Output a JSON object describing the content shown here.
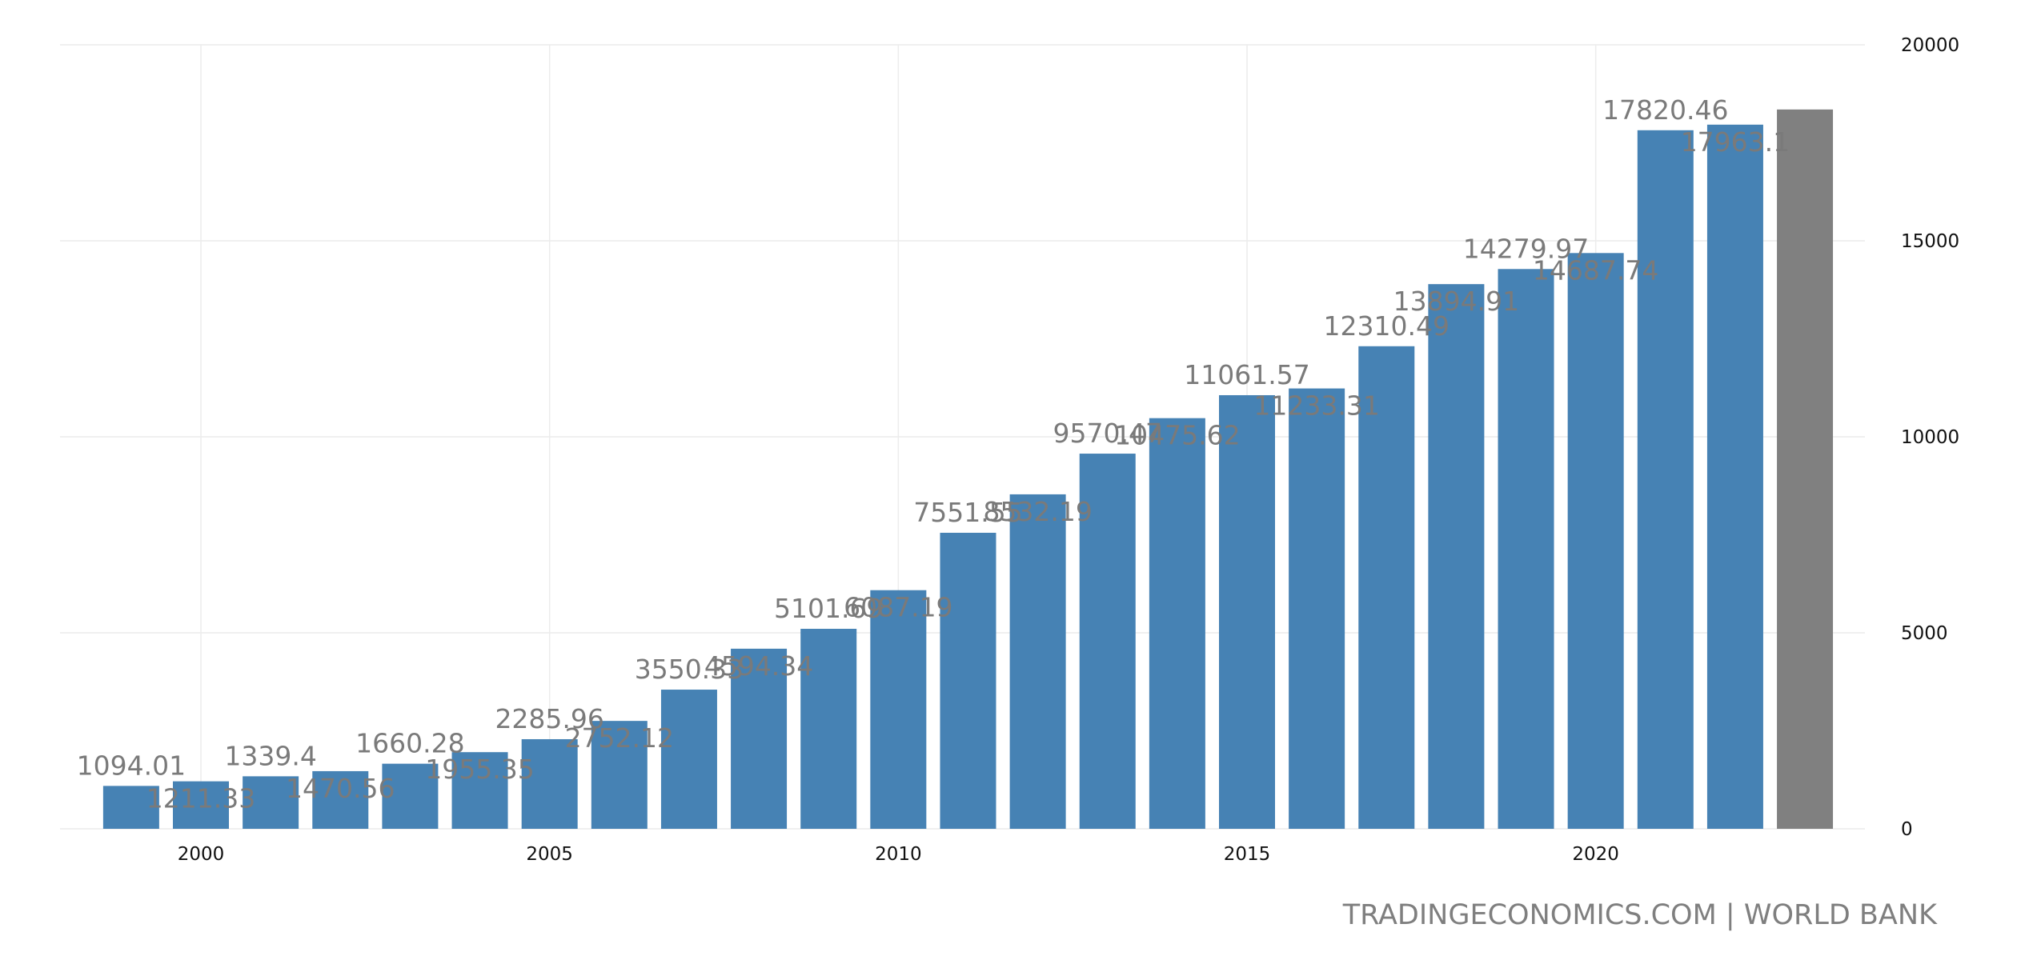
{
  "chart_data": {
    "type": "bar",
    "title": "",
    "xlabel": "",
    "ylabel": "",
    "x": [
      1999,
      2000,
      2001,
      2002,
      2003,
      2004,
      2005,
      2006,
      2007,
      2008,
      2009,
      2010,
      2011,
      2012,
      2013,
      2014,
      2015,
      2016,
      2017,
      2018,
      2019,
      2020,
      2021,
      2022,
      2023
    ],
    "values": [
      1094.01,
      1211.33,
      1339.4,
      1470.56,
      1660.28,
      1955.35,
      2285.96,
      2752.12,
      3550.33,
      4594.34,
      5101.69,
      6087.19,
      7551.55,
      8532.19,
      9570.47,
      10475.62,
      11061.57,
      11233.31,
      12310.49,
      13894.91,
      14279.97,
      14687.74,
      17820.46,
      17963.1,
      18350
    ],
    "data_labels": [
      "1094.01",
      "1211.33",
      "1339.4",
      "1470.56",
      "1660.28",
      "1955.35",
      "2285.96",
      "2752.12",
      "3550.33",
      "4594.34",
      "5101.69",
      "6087.19",
      "7551.55",
      "8532.19",
      "9570.47",
      "10475.62",
      "11061.57",
      "11233.31",
      "12310.49",
      "13894.91",
      "14279.97",
      "14687.74",
      "17820.46",
      "17963.1",
      ""
    ],
    "x_ticks": [
      2000,
      2005,
      2010,
      2015,
      2020
    ],
    "y_ticks": [
      0,
      5000,
      10000,
      15000,
      20000
    ],
    "ylim": [
      0,
      20000
    ],
    "xlim": [
      1997.98,
      2023.86
    ],
    "grid": true,
    "colors": {
      "bar": "#4682b4",
      "forecast_bar": "#808080",
      "label": "#7a7a7a",
      "grid": "#ececec"
    }
  },
  "footer": {
    "source": "TRADINGECONOMICS.COM | WORLD BANK"
  }
}
